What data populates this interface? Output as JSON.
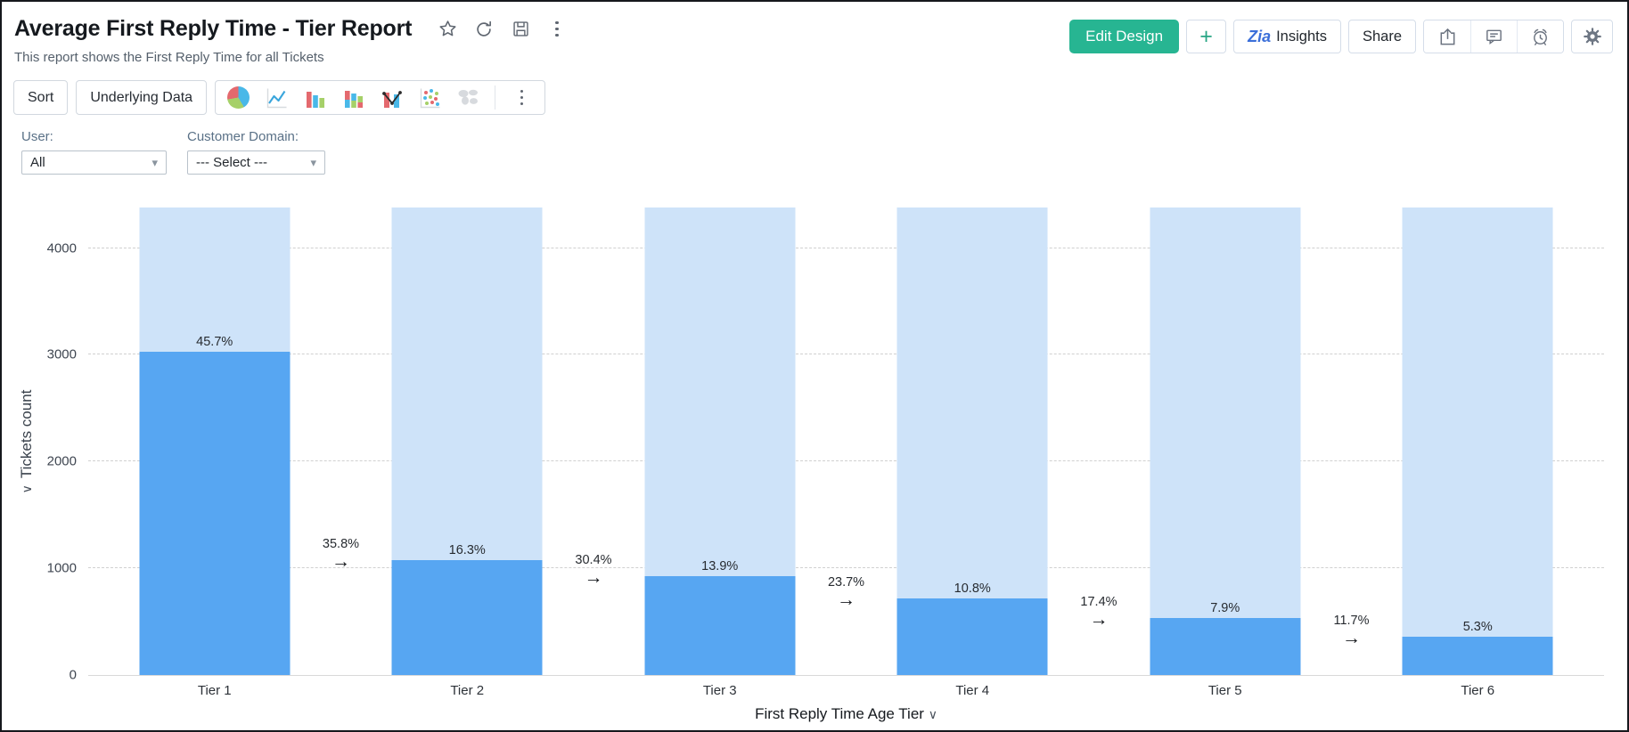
{
  "header": {
    "title": "Average First Reply Time - Tier Report",
    "subtitle": "This report shows the First Reply Time for all Tickets",
    "actions": {
      "edit_design": "Edit Design",
      "add": "+",
      "zia": "Zia",
      "insights": "Insights",
      "share": "Share"
    }
  },
  "toolbar": {
    "sort": "Sort",
    "underlying_data": "Underlying Data",
    "chart_types": [
      "pie",
      "line",
      "bar",
      "stacked-bar",
      "combo",
      "scatter",
      "map",
      "more"
    ]
  },
  "filters": [
    {
      "label": "User:",
      "value": "All"
    },
    {
      "label": "Customer Domain:",
      "value": "--- Select ---"
    }
  ],
  "chart_data": {
    "type": "bar",
    "subtype": "funnel-comparison-columns",
    "categories": [
      "Tier 1",
      "Tier 2",
      "Tier 3",
      "Tier 4",
      "Tier 5",
      "Tier 6"
    ],
    "series": [
      {
        "name": "Tickets count",
        "color": "#57a6f2",
        "values": [
          3030,
          1080,
          925,
          720,
          530,
          355
        ],
        "percent_labels": [
          "45.7%",
          "16.3%",
          "13.9%",
          "10.8%",
          "7.9%",
          "5.3%"
        ]
      },
      {
        "name": "All tickets background",
        "color": "#cee3f9",
        "values": [
          4380,
          4380,
          4380,
          4380,
          4380,
          4380
        ],
        "note": "full-height light bars clipped at plot top"
      }
    ],
    "transition_labels": [
      "35.8%",
      "30.4%",
      "23.7%",
      "17.4%",
      "11.7%"
    ],
    "xlabel": "First Reply Time Age Tier",
    "ylabel": "Tickets count",
    "yticks": [
      0,
      1000,
      2000,
      3000,
      4000
    ],
    "ylim": [
      0,
      4380
    ],
    "grid": "dashed-horizontal",
    "arrow_glyph": "→"
  }
}
